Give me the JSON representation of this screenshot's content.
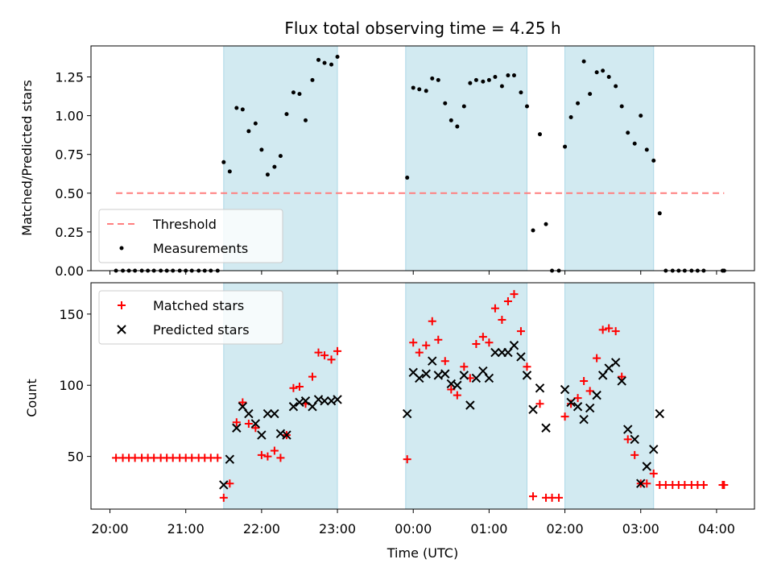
{
  "chart_data": {
    "type": "scatter",
    "title": "Flux total observing time = 4.25 h",
    "xlabel": "Time (UTC)",
    "x_ticks": [
      "20:00",
      "21:00",
      "22:00",
      "23:00",
      "00:00",
      "01:00",
      "02:00",
      "03:00",
      "04:00"
    ],
    "x_range_hours": [
      19.75,
      28.5
    ],
    "observing_windows": [
      [
        21.5,
        23.0
      ],
      [
        23.9,
        25.5
      ],
      [
        26.0,
        27.17
      ]
    ],
    "colors": {
      "window": "#add8e6",
      "threshold": "#ff7f7f",
      "measurements": "#000000",
      "matched": "#ff0000",
      "predicted": "#000000"
    },
    "panels": [
      {
        "name": "ratio",
        "ylabel": "Matched/Predicted stars",
        "ylim": [
          0,
          1.45
        ],
        "yticks": [
          "0.00",
          "0.25",
          "0.50",
          "0.75",
          "1.00",
          "1.25"
        ],
        "yticks_values": [
          0,
          0.25,
          0.5,
          0.75,
          1.0,
          1.25
        ],
        "legend": {
          "position": "lower-left",
          "entries": [
            "Threshold",
            "Measurements"
          ]
        },
        "threshold": {
          "name": "Threshold",
          "y": 0.5,
          "x": [
            20.08,
            28.1
          ]
        },
        "series": [
          {
            "name": "Measurements",
            "points": [
              [
                20.08,
                0
              ],
              [
                20.17,
                0
              ],
              [
                20.25,
                0
              ],
              [
                20.33,
                0
              ],
              [
                20.42,
                0
              ],
              [
                20.5,
                0
              ],
              [
                20.58,
                0
              ],
              [
                20.67,
                0
              ],
              [
                20.75,
                0
              ],
              [
                20.83,
                0
              ],
              [
                20.92,
                0
              ],
              [
                21.0,
                0
              ],
              [
                21.08,
                0
              ],
              [
                21.17,
                0
              ],
              [
                21.25,
                0
              ],
              [
                21.33,
                0
              ],
              [
                21.42,
                0
              ],
              [
                21.5,
                0.7
              ],
              [
                21.58,
                0.64
              ],
              [
                21.67,
                1.05
              ],
              [
                21.75,
                1.04
              ],
              [
                21.83,
                0.9
              ],
              [
                21.92,
                0.95
              ],
              [
                22.0,
                0.78
              ],
              [
                22.08,
                0.62
              ],
              [
                22.17,
                0.67
              ],
              [
                22.25,
                0.74
              ],
              [
                22.33,
                1.01
              ],
              [
                22.42,
                1.15
              ],
              [
                22.5,
                1.14
              ],
              [
                22.58,
                0.97
              ],
              [
                22.67,
                1.23
              ],
              [
                22.75,
                1.36
              ],
              [
                22.83,
                1.34
              ],
              [
                22.92,
                1.33
              ],
              [
                23.0,
                1.38
              ],
              [
                23.92,
                0.6
              ],
              [
                24.0,
                1.18
              ],
              [
                24.08,
                1.17
              ],
              [
                24.17,
                1.16
              ],
              [
                24.25,
                1.24
              ],
              [
                24.33,
                1.23
              ],
              [
                24.42,
                1.08
              ],
              [
                24.5,
                0.97
              ],
              [
                24.58,
                0.93
              ],
              [
                24.67,
                1.06
              ],
              [
                24.75,
                1.21
              ],
              [
                24.83,
                1.23
              ],
              [
                24.92,
                1.22
              ],
              [
                25.0,
                1.23
              ],
              [
                25.08,
                1.25
              ],
              [
                25.17,
                1.19
              ],
              [
                25.25,
                1.26
              ],
              [
                25.33,
                1.26
              ],
              [
                25.42,
                1.15
              ],
              [
                25.5,
                1.06
              ],
              [
                25.58,
                0.26
              ],
              [
                25.67,
                0.88
              ],
              [
                25.75,
                0.3
              ],
              [
                25.83,
                0
              ],
              [
                25.92,
                0
              ],
              [
                26.0,
                0.8
              ],
              [
                26.08,
                0.99
              ],
              [
                26.17,
                1.08
              ],
              [
                26.25,
                1.35
              ],
              [
                26.33,
                1.14
              ],
              [
                26.42,
                1.28
              ],
              [
                26.5,
                1.29
              ],
              [
                26.58,
                1.25
              ],
              [
                26.67,
                1.19
              ],
              [
                26.75,
                1.06
              ],
              [
                26.83,
                0.89
              ],
              [
                26.92,
                0.82
              ],
              [
                27.0,
                1.0
              ],
              [
                27.08,
                0.78
              ],
              [
                27.17,
                0.71
              ],
              [
                27.25,
                0.37
              ],
              [
                27.33,
                0
              ],
              [
                27.42,
                0
              ],
              [
                27.5,
                0
              ],
              [
                27.58,
                0
              ],
              [
                27.67,
                0
              ],
              [
                27.75,
                0
              ],
              [
                27.83,
                0
              ],
              [
                28.08,
                0
              ],
              [
                28.1,
                0
              ]
            ]
          }
        ]
      },
      {
        "name": "counts",
        "ylabel": "Count",
        "ylim": [
          13,
          172
        ],
        "yticks": [
          "50",
          "100",
          "150"
        ],
        "yticks_values": [
          50,
          100,
          150
        ],
        "legend": {
          "position": "upper-left",
          "entries": [
            "Matched stars",
            "Predicted stars"
          ]
        },
        "series": [
          {
            "name": "Matched stars",
            "marker": "plus",
            "points": [
              [
                20.08,
                49
              ],
              [
                20.17,
                49
              ],
              [
                20.25,
                49
              ],
              [
                20.33,
                49
              ],
              [
                20.42,
                49
              ],
              [
                20.5,
                49
              ],
              [
                20.58,
                49
              ],
              [
                20.67,
                49
              ],
              [
                20.75,
                49
              ],
              [
                20.83,
                49
              ],
              [
                20.92,
                49
              ],
              [
                21.0,
                49
              ],
              [
                21.08,
                49
              ],
              [
                21.17,
                49
              ],
              [
                21.25,
                49
              ],
              [
                21.33,
                49
              ],
              [
                21.42,
                49
              ],
              [
                21.5,
                21
              ],
              [
                21.58,
                31
              ],
              [
                21.67,
                74
              ],
              [
                21.75,
                88
              ],
              [
                21.83,
                73
              ],
              [
                21.92,
                70
              ],
              [
                22.0,
                51
              ],
              [
                22.08,
                50
              ],
              [
                22.17,
                54
              ],
              [
                22.25,
                49
              ],
              [
                22.33,
                65
              ],
              [
                22.42,
                98
              ],
              [
                22.5,
                99
              ],
              [
                22.58,
                87
              ],
              [
                22.67,
                106
              ],
              [
                22.75,
                123
              ],
              [
                22.83,
                121
              ],
              [
                22.92,
                118
              ],
              [
                23.0,
                124
              ],
              [
                23.92,
                48
              ],
              [
                24.0,
                130
              ],
              [
                24.08,
                123
              ],
              [
                24.17,
                128
              ],
              [
                24.25,
                145
              ],
              [
                24.33,
                132
              ],
              [
                24.42,
                117
              ],
              [
                24.5,
                97
              ],
              [
                24.58,
                93
              ],
              [
                24.67,
                113
              ],
              [
                24.75,
                105
              ],
              [
                24.83,
                129
              ],
              [
                24.92,
                134
              ],
              [
                25.0,
                130
              ],
              [
                25.08,
                154
              ],
              [
                25.17,
                146
              ],
              [
                25.25,
                159
              ],
              [
                25.33,
                164
              ],
              [
                25.42,
                138
              ],
              [
                25.5,
                113
              ],
              [
                25.58,
                22
              ],
              [
                25.67,
                87
              ],
              [
                25.75,
                21
              ],
              [
                25.83,
                21
              ],
              [
                25.92,
                21
              ],
              [
                26.0,
                78
              ],
              [
                26.08,
                87
              ],
              [
                26.17,
                91
              ],
              [
                26.25,
                103
              ],
              [
                26.33,
                96
              ],
              [
                26.42,
                119
              ],
              [
                26.5,
                139
              ],
              [
                26.58,
                140
              ],
              [
                26.67,
                138
              ],
              [
                26.75,
                106
              ],
              [
                26.83,
                62
              ],
              [
                26.92,
                51
              ],
              [
                27.0,
                31
              ],
              [
                27.08,
                31
              ],
              [
                27.17,
                38
              ],
              [
                27.25,
                30
              ],
              [
                27.33,
                30
              ],
              [
                27.42,
                30
              ],
              [
                27.5,
                30
              ],
              [
                27.58,
                30
              ],
              [
                27.67,
                30
              ],
              [
                27.75,
                30
              ],
              [
                27.83,
                30
              ],
              [
                28.08,
                30
              ],
              [
                28.1,
                30
              ]
            ]
          },
          {
            "name": "Predicted stars",
            "marker": "x",
            "points": [
              [
                21.5,
                30
              ],
              [
                21.58,
                48
              ],
              [
                21.67,
                70
              ],
              [
                21.75,
                85
              ],
              [
                21.83,
                80
              ],
              [
                21.92,
                73
              ],
              [
                22.0,
                65
              ],
              [
                22.08,
                80
              ],
              [
                22.17,
                80
              ],
              [
                22.25,
                66
              ],
              [
                22.33,
                65
              ],
              [
                22.42,
                85
              ],
              [
                22.5,
                88
              ],
              [
                22.58,
                89
              ],
              [
                22.67,
                85
              ],
              [
                22.75,
                90
              ],
              [
                22.83,
                89
              ],
              [
                22.92,
                89
              ],
              [
                23.0,
                90
              ],
              [
                23.92,
                80
              ],
              [
                24.0,
                109
              ],
              [
                24.08,
                105
              ],
              [
                24.17,
                108
              ],
              [
                24.25,
                117
              ],
              [
                24.33,
                107
              ],
              [
                24.42,
                108
              ],
              [
                24.5,
                101
              ],
              [
                24.58,
                100
              ],
              [
                24.67,
                107
              ],
              [
                24.75,
                86
              ],
              [
                24.83,
                105
              ],
              [
                24.92,
                110
              ],
              [
                25.0,
                105
              ],
              [
                25.08,
                123
              ],
              [
                25.17,
                123
              ],
              [
                25.25,
                123
              ],
              [
                25.33,
                128
              ],
              [
                25.42,
                120
              ],
              [
                25.5,
                107
              ],
              [
                25.58,
                83
              ],
              [
                25.67,
                98
              ],
              [
                25.75,
                70
              ],
              [
                26.0,
                97
              ],
              [
                26.08,
                88
              ],
              [
                26.17,
                85
              ],
              [
                26.25,
                76
              ],
              [
                26.33,
                84
              ],
              [
                26.42,
                93
              ],
              [
                26.5,
                107
              ],
              [
                26.58,
                112
              ],
              [
                26.67,
                116
              ],
              [
                26.75,
                103
              ],
              [
                26.83,
                69
              ],
              [
                26.92,
                62
              ],
              [
                27.0,
                31
              ],
              [
                27.08,
                43
              ],
              [
                27.17,
                55
              ],
              [
                27.25,
                80
              ]
            ]
          }
        ]
      }
    ]
  }
}
